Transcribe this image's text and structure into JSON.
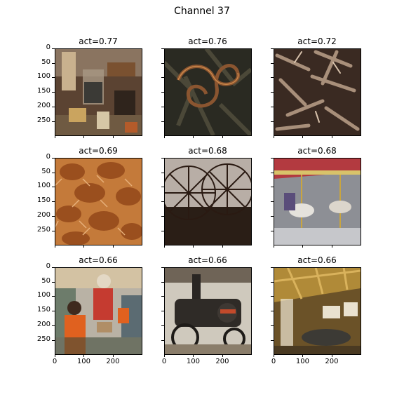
{
  "chart_data": {
    "type": "image-grid",
    "title": "Channel 37",
    "panels": [
      {
        "title": "act=0.77",
        "scene": "store-interior",
        "row": 0,
        "col": 0
      },
      {
        "title": "act=0.76",
        "scene": "snake",
        "row": 0,
        "col": 1
      },
      {
        "title": "act=0.72",
        "scene": "tools-pile",
        "row": 0,
        "col": 2
      },
      {
        "title": "act=0.69",
        "scene": "crabs",
        "row": 1,
        "col": 0
      },
      {
        "title": "act=0.68",
        "scene": "wagon-wheels",
        "row": 1,
        "col": 1
      },
      {
        "title": "act=0.68",
        "scene": "carousel",
        "row": 1,
        "col": 2
      },
      {
        "title": "act=0.66",
        "scene": "shop-people",
        "row": 2,
        "col": 0
      },
      {
        "title": "act=0.66",
        "scene": "steam-engine",
        "row": 2,
        "col": 1
      },
      {
        "title": "act=0.66",
        "scene": "barn-interior",
        "row": 2,
        "col": 2
      }
    ],
    "y_ticks": [
      "0",
      "50",
      "100",
      "150",
      "200",
      "250"
    ],
    "y_tick_values": [
      0,
      50,
      100,
      150,
      200,
      250
    ],
    "x_ticks": [
      "0",
      "100",
      "200"
    ],
    "x_tick_values": [
      0,
      100,
      200
    ],
    "axis_range": [
      0,
      299
    ]
  }
}
